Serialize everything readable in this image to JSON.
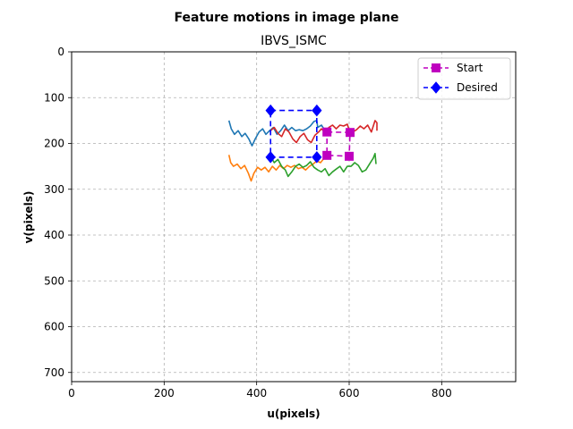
{
  "chart_data": {
    "type": "line",
    "title": "Feature motions in image plane",
    "subtitle": "IBVS_ISMC",
    "xlabel": "u(pixels)",
    "ylabel": "v(pixels)",
    "xlim": [
      0,
      960
    ],
    "ylim": [
      720,
      0
    ],
    "y_inverted": true,
    "xticks": [
      0,
      200,
      400,
      600,
      800
    ],
    "yticks": [
      0,
      100,
      200,
      300,
      400,
      500,
      600,
      700
    ],
    "grid": true,
    "legend": {
      "placement": "top-right",
      "entries": [
        {
          "label": "Start",
          "color": "#bf00bf",
          "marker": "square",
          "linestyle": "dashed"
        },
        {
          "label": "Desired",
          "color": "#0000ff",
          "marker": "diamond",
          "linestyle": "dashed"
        }
      ]
    },
    "series": [
      {
        "color": "#1f77b4",
        "points": [
          [
            340,
            150
          ],
          [
            345,
            168
          ],
          [
            352,
            180
          ],
          [
            360,
            172
          ],
          [
            368,
            185
          ],
          [
            375,
            178
          ],
          [
            383,
            190
          ],
          [
            390,
            205
          ],
          [
            397,
            190
          ],
          [
            405,
            175
          ],
          [
            413,
            168
          ],
          [
            420,
            180
          ],
          [
            428,
            172
          ],
          [
            436,
            165
          ],
          [
            444,
            180
          ],
          [
            452,
            172
          ],
          [
            460,
            160
          ],
          [
            468,
            172
          ],
          [
            476,
            165
          ],
          [
            484,
            172
          ],
          [
            492,
            170
          ],
          [
            500,
            172
          ],
          [
            508,
            168
          ],
          [
            516,
            162
          ],
          [
            524,
            152
          ],
          [
            530,
            150
          ],
          [
            532,
            165
          ],
          [
            540,
            160
          ],
          [
            548,
            172
          ],
          [
            552,
            175
          ]
        ]
      },
      {
        "color": "#ff7f0e",
        "points": [
          [
            340,
            225
          ],
          [
            344,
            242
          ],
          [
            350,
            250
          ],
          [
            358,
            245
          ],
          [
            366,
            255
          ],
          [
            374,
            248
          ],
          [
            382,
            265
          ],
          [
            388,
            282
          ],
          [
            394,
            265
          ],
          [
            402,
            252
          ],
          [
            410,
            258
          ],
          [
            418,
            252
          ],
          [
            426,
            262
          ],
          [
            434,
            250
          ],
          [
            442,
            258
          ],
          [
            450,
            248
          ],
          [
            458,
            255
          ],
          [
            466,
            248
          ],
          [
            474,
            252
          ],
          [
            482,
            248
          ],
          [
            490,
            255
          ],
          [
            498,
            252
          ],
          [
            506,
            258
          ],
          [
            514,
            250
          ],
          [
            522,
            245
          ],
          [
            530,
            238
          ],
          [
            538,
            242
          ],
          [
            546,
            232
          ],
          [
            552,
            226
          ]
        ]
      },
      {
        "color": "#2ca02c",
        "points": [
          [
            430,
            228
          ],
          [
            438,
            242
          ],
          [
            446,
            235
          ],
          [
            454,
            250
          ],
          [
            462,
            258
          ],
          [
            468,
            272
          ],
          [
            476,
            262
          ],
          [
            484,
            250
          ],
          [
            492,
            245
          ],
          [
            500,
            252
          ],
          [
            508,
            248
          ],
          [
            516,
            240
          ],
          [
            524,
            252
          ],
          [
            532,
            258
          ],
          [
            540,
            262
          ],
          [
            548,
            255
          ],
          [
            556,
            270
          ],
          [
            564,
            262
          ],
          [
            572,
            256
          ],
          [
            580,
            250
          ],
          [
            588,
            262
          ],
          [
            596,
            250
          ],
          [
            604,
            250
          ],
          [
            612,
            242
          ],
          [
            620,
            248
          ],
          [
            628,
            262
          ],
          [
            636,
            258
          ],
          [
            644,
            245
          ],
          [
            652,
            232
          ],
          [
            656,
            222
          ],
          [
            658,
            245
          ]
        ]
      },
      {
        "color": "#d62728",
        "points": [
          [
            430,
            172
          ],
          [
            438,
            165
          ],
          [
            446,
            178
          ],
          [
            454,
            185
          ],
          [
            462,
            168
          ],
          [
            470,
            175
          ],
          [
            478,
            190
          ],
          [
            486,
            198
          ],
          [
            494,
            185
          ],
          [
            502,
            178
          ],
          [
            510,
            192
          ],
          [
            518,
            198
          ],
          [
            526,
            182
          ],
          [
            534,
            175
          ],
          [
            540,
            168
          ],
          [
            548,
            175
          ],
          [
            556,
            165
          ],
          [
            564,
            160
          ],
          [
            572,
            168
          ],
          [
            580,
            160
          ],
          [
            588,
            162
          ],
          [
            596,
            158
          ],
          [
            602,
            176
          ],
          [
            608,
            175
          ],
          [
            616,
            170
          ],
          [
            624,
            162
          ],
          [
            632,
            168
          ],
          [
            640,
            160
          ],
          [
            648,
            175
          ],
          [
            656,
            150
          ],
          [
            660,
            155
          ],
          [
            660,
            172
          ]
        ]
      },
      {
        "name": "Start",
        "color": "#bf00bf",
        "marker": "square",
        "linestyle": "dashed",
        "points": [
          [
            552,
            175
          ],
          [
            602,
            176
          ],
          [
            600,
            228
          ],
          [
            552,
            226
          ],
          [
            552,
            175
          ]
        ]
      },
      {
        "name": "Desired",
        "color": "#0000ff",
        "marker": "diamond",
        "linestyle": "dashed",
        "points": [
          [
            430,
            128
          ],
          [
            530,
            128
          ],
          [
            530,
            230
          ],
          [
            430,
            230
          ],
          [
            430,
            128
          ]
        ]
      }
    ]
  }
}
